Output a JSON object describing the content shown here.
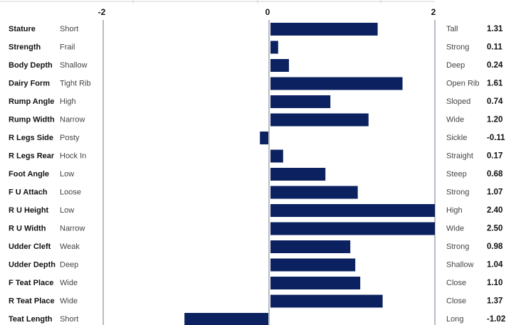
{
  "chart_data": {
    "type": "bar",
    "orientation": "horizontal",
    "xlim": [
      -2,
      2
    ],
    "x_ticks": [
      "-2",
      "0",
      "2"
    ],
    "bar_color": "#0b2160",
    "rows": [
      {
        "trait": "Stature",
        "low": "Short",
        "high": "Tall",
        "value": 1.31,
        "label": "1.31"
      },
      {
        "trait": "Strength",
        "low": "Frail",
        "high": "Strong",
        "value": 0.11,
        "label": "0.11"
      },
      {
        "trait": "Body Depth",
        "low": "Shallow",
        "high": "Deep",
        "value": 0.24,
        "label": "0.24"
      },
      {
        "trait": "Dairy Form",
        "low": "Tight Rib",
        "high": "Open Rib",
        "value": 1.61,
        "label": "1.61"
      },
      {
        "trait": "Rump Angle",
        "low": "High",
        "high": "Sloped",
        "value": 0.74,
        "label": "0.74"
      },
      {
        "trait": "Rump Width",
        "low": "Narrow",
        "high": "Wide",
        "value": 1.2,
        "label": "1.20"
      },
      {
        "trait": "R Legs Side",
        "low": "Posty",
        "high": "Sickle",
        "value": -0.11,
        "label": "-0.11"
      },
      {
        "trait": "R Legs Rear",
        "low": "Hock In",
        "high": "Straight",
        "value": 0.17,
        "label": "0.17"
      },
      {
        "trait": "Foot Angle",
        "low": "Low",
        "high": "Steep",
        "value": 0.68,
        "label": "0.68"
      },
      {
        "trait": "F U Attach",
        "low": "Loose",
        "high": "Strong",
        "value": 1.07,
        "label": "1.07"
      },
      {
        "trait": "R U Height",
        "low": "Low",
        "high": "High",
        "value": 2.4,
        "label": "2.40"
      },
      {
        "trait": "R U Width",
        "low": "Narrow",
        "high": "Wide",
        "value": 2.5,
        "label": "2.50"
      },
      {
        "trait": "Udder Cleft",
        "low": "Weak",
        "high": "Strong",
        "value": 0.98,
        "label": "0.98"
      },
      {
        "trait": "Udder Depth",
        "low": "Deep",
        "high": "Shallow",
        "value": 1.04,
        "label": "1.04"
      },
      {
        "trait": "F Teat Place",
        "low": "Wide",
        "high": "Close",
        "value": 1.1,
        "label": "1.10"
      },
      {
        "trait": "R Teat Place",
        "low": "Wide",
        "high": "Close",
        "value": 1.37,
        "label": "1.37"
      },
      {
        "trait": "Teat Length",
        "low": "Short",
        "high": "Long",
        "value": -1.02,
        "label": "-1.02"
      }
    ]
  }
}
